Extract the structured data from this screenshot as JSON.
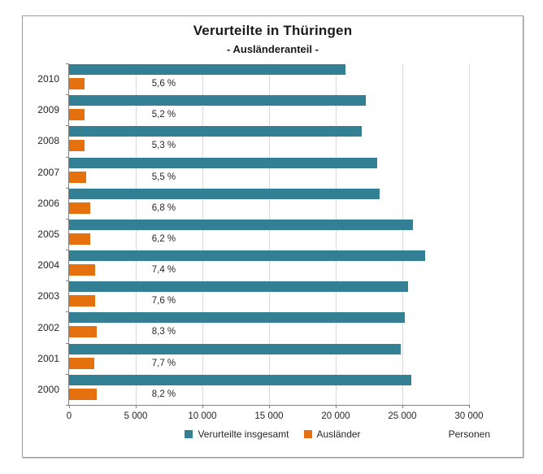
{
  "chart_data": {
    "type": "bar",
    "orientation": "horizontal",
    "title": "Verurteilte in Thüringen",
    "subtitle": "- Ausländeranteil -",
    "xlabel": "Personen",
    "xlim": [
      0,
      30000
    ],
    "xtick_values": [
      0,
      5000,
      10000,
      15000,
      20000,
      25000,
      30000
    ],
    "xtick_labels": [
      "0",
      "5 000",
      "10 000",
      "15 000",
      "20 000",
      "25 000",
      "30 000"
    ],
    "grid": true,
    "legend_position": "bottom",
    "categories": [
      "2010",
      "2009",
      "2008",
      "2007",
      "2006",
      "2005",
      "2004",
      "2003",
      "2002",
      "2001",
      "2000"
    ],
    "series": [
      {
        "name": "Verurteilte insgesamt",
        "color": "#337F93",
        "values": [
          20750,
          22250,
          21950,
          23100,
          23300,
          25800,
          26700,
          25450,
          25200,
          24850,
          25650
        ]
      },
      {
        "name": "Ausländer",
        "color": "#E4710D",
        "values": [
          1160,
          1160,
          1160,
          1270,
          1580,
          1600,
          1980,
          1930,
          2090,
          1910,
          2100
        ]
      }
    ],
    "bar_labels": [
      "5,6 %",
      "5,2 %",
      "5,3 %",
      "5,5 %",
      "6,8 %",
      "6,2 %",
      "7,4 %",
      "7,6 %",
      "8,3 %",
      "7,7 %",
      "8,2 %"
    ],
    "bar_label_position_value": 7100
  },
  "colors": {
    "grid": "#d9d9d9",
    "axis": "#808080",
    "text": "#262626",
    "frame_border": "#9b9b9b"
  }
}
